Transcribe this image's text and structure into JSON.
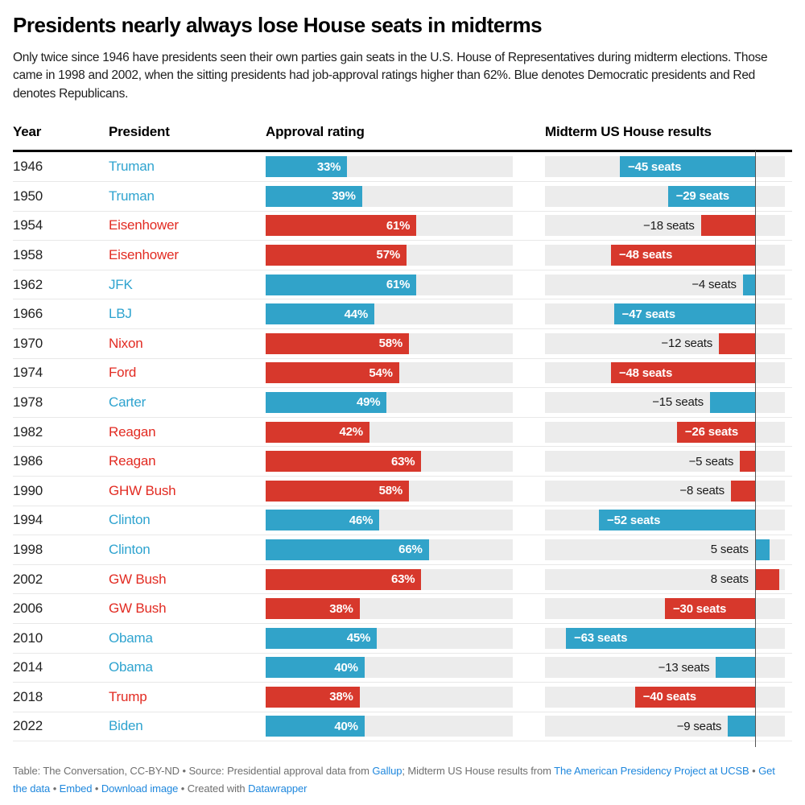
{
  "header": {
    "title": "Presidents nearly always lose House seats in midterms",
    "description": "Only twice since 1946 have presidents seen their own parties gain seats in the U.S. House of Representatives during midterm elections. Those came in 1998 and 2002, when the sitting presidents had job-approval ratings higher than 62%. Blue denotes Democratic presidents and Red denotes Republicans."
  },
  "chart_data": {
    "type": "table",
    "title": "Presidents nearly always lose House seats in midterms",
    "columns": [
      "Year",
      "President",
      "Approval rating",
      "Midterm US House results"
    ],
    "approval_axis": {
      "min": 0,
      "max": 100
    },
    "seats_axis": {
      "min": -70,
      "max": 10
    },
    "rows": [
      {
        "year": "1946",
        "president": "Truman",
        "party": "D",
        "approval_pct": 33,
        "approval_label": "33%",
        "seat_change": -45,
        "seats_label": "−45 seats"
      },
      {
        "year": "1950",
        "president": "Truman",
        "party": "D",
        "approval_pct": 39,
        "approval_label": "39%",
        "seat_change": -29,
        "seats_label": "−29 seats"
      },
      {
        "year": "1954",
        "president": "Eisenhower",
        "party": "R",
        "approval_pct": 61,
        "approval_label": "61%",
        "seat_change": -18,
        "seats_label": "−18 seats"
      },
      {
        "year": "1958",
        "president": "Eisenhower",
        "party": "R",
        "approval_pct": 57,
        "approval_label": "57%",
        "seat_change": -48,
        "seats_label": "−48 seats"
      },
      {
        "year": "1962",
        "president": "JFK",
        "party": "D",
        "approval_pct": 61,
        "approval_label": "61%",
        "seat_change": -4,
        "seats_label": "−4 seats"
      },
      {
        "year": "1966",
        "president": "LBJ",
        "party": "D",
        "approval_pct": 44,
        "approval_label": "44%",
        "seat_change": -47,
        "seats_label": "−47 seats"
      },
      {
        "year": "1970",
        "president": "Nixon",
        "party": "R",
        "approval_pct": 58,
        "approval_label": "58%",
        "seat_change": -12,
        "seats_label": "−12 seats"
      },
      {
        "year": "1974",
        "president": "Ford",
        "party": "R",
        "approval_pct": 54,
        "approval_label": "54%",
        "seat_change": -48,
        "seats_label": "−48 seats"
      },
      {
        "year": "1978",
        "president": "Carter",
        "party": "D",
        "approval_pct": 49,
        "approval_label": "49%",
        "seat_change": -15,
        "seats_label": "−15 seats"
      },
      {
        "year": "1982",
        "president": "Reagan",
        "party": "R",
        "approval_pct": 42,
        "approval_label": "42%",
        "seat_change": -26,
        "seats_label": "−26 seats"
      },
      {
        "year": "1986",
        "president": "Reagan",
        "party": "R",
        "approval_pct": 63,
        "approval_label": "63%",
        "seat_change": -5,
        "seats_label": "−5 seats"
      },
      {
        "year": "1990",
        "president": "GHW Bush",
        "party": "R",
        "approval_pct": 58,
        "approval_label": "58%",
        "seat_change": -8,
        "seats_label": "−8 seats"
      },
      {
        "year": "1994",
        "president": "Clinton",
        "party": "D",
        "approval_pct": 46,
        "approval_label": "46%",
        "seat_change": -52,
        "seats_label": "−52 seats"
      },
      {
        "year": "1998",
        "president": "Clinton",
        "party": "D",
        "approval_pct": 66,
        "approval_label": "66%",
        "seat_change": 5,
        "seats_label": "5 seats"
      },
      {
        "year": "2002",
        "president": "GW Bush",
        "party": "R",
        "approval_pct": 63,
        "approval_label": "63%",
        "seat_change": 8,
        "seats_label": "8 seats"
      },
      {
        "year": "2006",
        "president": "GW Bush",
        "party": "R",
        "approval_pct": 38,
        "approval_label": "38%",
        "seat_change": -30,
        "seats_label": "−30 seats"
      },
      {
        "year": "2010",
        "president": "Obama",
        "party": "D",
        "approval_pct": 45,
        "approval_label": "45%",
        "seat_change": -63,
        "seats_label": "−63 seats"
      },
      {
        "year": "2014",
        "president": "Obama",
        "party": "D",
        "approval_pct": 40,
        "approval_label": "40%",
        "seat_change": -13,
        "seats_label": "−13 seats"
      },
      {
        "year": "2018",
        "president": "Trump",
        "party": "R",
        "approval_pct": 38,
        "approval_label": "38%",
        "seat_change": -40,
        "seats_label": "−40 seats"
      },
      {
        "year": "2022",
        "president": "Biden",
        "party": "D",
        "approval_pct": 40,
        "approval_label": "40%",
        "seat_change": -9,
        "seats_label": "−9 seats"
      }
    ]
  },
  "colors": {
    "democrat_bar": "#31A3C9",
    "republican_bar": "#D7382C",
    "democrat_text": "#2EA3CF",
    "republican_text": "#E22B22",
    "track": "#ECECEC",
    "zero_line": "#555555",
    "separator": "#E8E8E8",
    "link": "#1E87DD",
    "footer_text": "#6F6F6F",
    "header_rule": "#000000"
  },
  "footer": {
    "segments": [
      {
        "t": "Table: The Conversation, CC-BY-ND",
        "link": false
      },
      {
        "t": " • ",
        "link": false
      },
      {
        "t": "Source: Presidential approval data from ",
        "link": false
      },
      {
        "t": "Gallup",
        "link": true
      },
      {
        "t": "; Midterm US House results from ",
        "link": false
      },
      {
        "t": "The American Presidency Project at UCSB",
        "link": true
      },
      {
        "t": " • ",
        "link": false
      },
      {
        "t": "Get the data",
        "link": true
      },
      {
        "t": " • ",
        "link": false
      },
      {
        "t": "Embed",
        "link": true
      },
      {
        "t": "  • ",
        "link": false
      },
      {
        "t": "Download image",
        "link": true
      },
      {
        "t": " • Created with ",
        "link": false
      },
      {
        "t": "Datawrapper",
        "link": true
      }
    ]
  }
}
